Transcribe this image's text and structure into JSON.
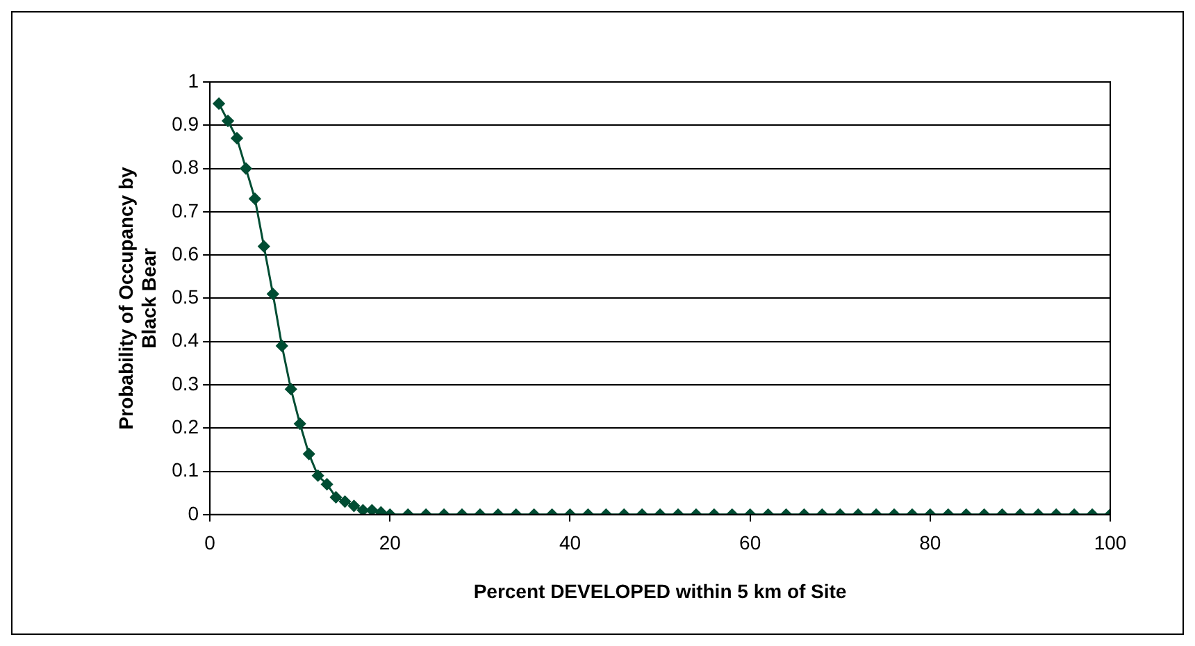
{
  "chart_data": {
    "type": "line",
    "xlabel": "Percent DEVELOPED within 5 km of Site",
    "ylabel": "Probability of Occupancy by Black Bear",
    "x": [
      1,
      2,
      3,
      4,
      5,
      6,
      7,
      8,
      9,
      10,
      11,
      12,
      13,
      14,
      15,
      16,
      17,
      18,
      19,
      20,
      22,
      24,
      26,
      28,
      30,
      32,
      34,
      36,
      38,
      40,
      42,
      44,
      46,
      48,
      50,
      52,
      54,
      56,
      58,
      60,
      62,
      64,
      66,
      68,
      70,
      72,
      74,
      76,
      78,
      80,
      82,
      84,
      86,
      88,
      90,
      92,
      94,
      96,
      98,
      100
    ],
    "series": [
      {
        "color": "#004d33",
        "values": [
          0.95,
          0.91,
          0.87,
          0.8,
          0.73,
          0.62,
          0.51,
          0.39,
          0.29,
          0.21,
          0.14,
          0.09,
          0.07,
          0.04,
          0.03,
          0.02,
          0.01,
          0.01,
          0.005,
          0,
          0,
          0,
          0,
          0,
          0,
          0,
          0,
          0,
          0,
          0,
          0,
          0,
          0,
          0,
          0,
          0,
          0,
          0,
          0,
          0,
          0,
          0,
          0,
          0,
          0,
          0,
          0,
          0,
          0,
          0,
          0,
          0,
          0,
          0,
          0,
          0,
          0,
          0,
          0,
          0
        ]
      }
    ],
    "xlim": [
      0,
      100
    ],
    "xticks": [
      0,
      20,
      40,
      60,
      80,
      100
    ],
    "ylim": [
      0,
      1
    ],
    "yticks": [
      0,
      0.1,
      0.2,
      0.3,
      0.4,
      0.5,
      0.6,
      0.7,
      0.8,
      0.9,
      1
    ],
    "grid": "y",
    "legend": false,
    "marker": "diamond",
    "line_style": "solid"
  }
}
